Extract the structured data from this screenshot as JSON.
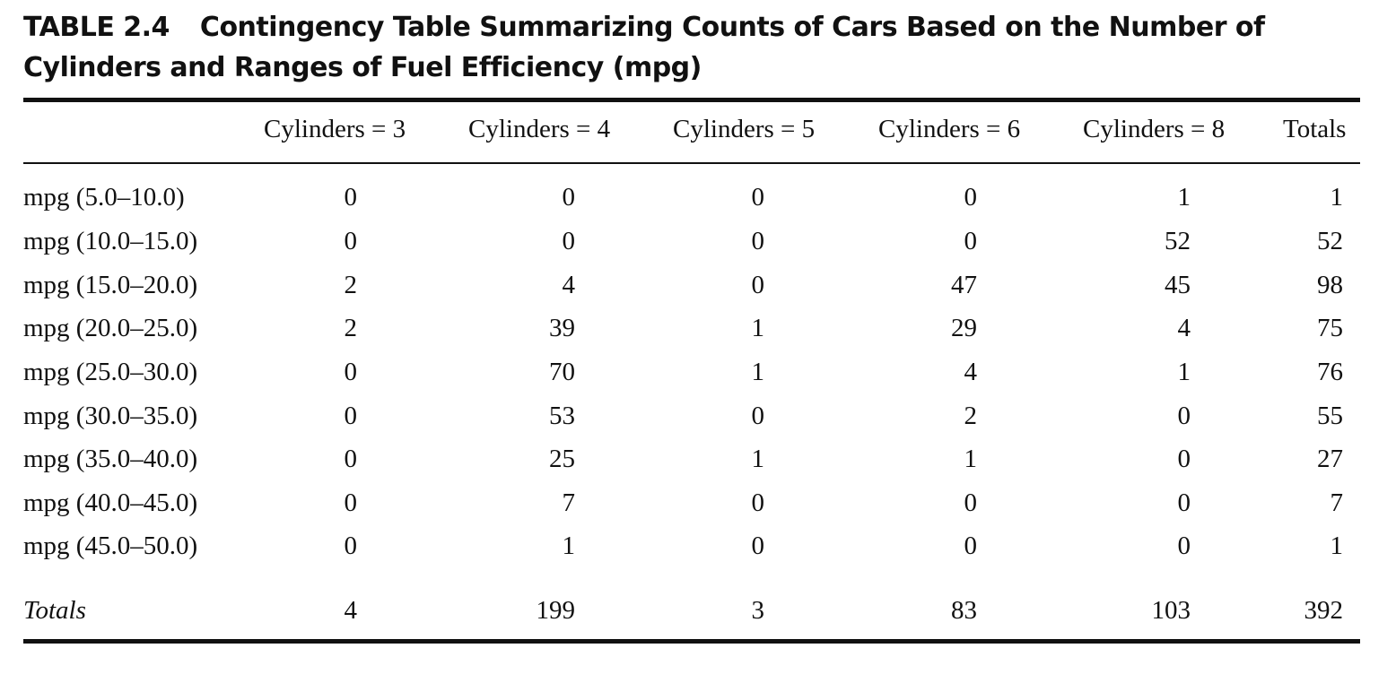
{
  "caption": {
    "label": "TABLE 2.4",
    "line1": "Contingency Table Summarizing Counts of Cars Based on the Number of",
    "line2": "Cylinders and Ranges of Fuel Efficiency (mpg)"
  },
  "headers": [
    "Cylinders = 3",
    "Cylinders = 4",
    "Cylinders = 5",
    "Cylinders = 6",
    "Cylinders = 8",
    "Totals"
  ],
  "rows": [
    {
      "label": "mpg (5.0–10.0)",
      "values": [
        "0",
        "0",
        "0",
        "0",
        "1",
        "1"
      ]
    },
    {
      "label": "mpg (10.0–15.0)",
      "values": [
        "0",
        "0",
        "0",
        "0",
        "52",
        "52"
      ]
    },
    {
      "label": "mpg (15.0–20.0)",
      "values": [
        "2",
        "4",
        "0",
        "47",
        "45",
        "98"
      ]
    },
    {
      "label": "mpg (20.0–25.0)",
      "values": [
        "2",
        "39",
        "1",
        "29",
        "4",
        "75"
      ]
    },
    {
      "label": "mpg (25.0–30.0)",
      "values": [
        "0",
        "70",
        "1",
        "4",
        "1",
        "76"
      ]
    },
    {
      "label": "mpg (30.0–35.0)",
      "values": [
        "0",
        "53",
        "0",
        "2",
        "0",
        "55"
      ]
    },
    {
      "label": "mpg (35.0–40.0)",
      "values": [
        "0",
        "25",
        "1",
        "1",
        "0",
        "27"
      ]
    },
    {
      "label": "mpg (40.0–45.0)",
      "values": [
        "0",
        "7",
        "0",
        "0",
        "0",
        "7"
      ]
    },
    {
      "label": "mpg (45.0–50.0)",
      "values": [
        "0",
        "1",
        "0",
        "0",
        "0",
        "1"
      ]
    }
  ],
  "totals": {
    "label": "Totals",
    "values": [
      "4",
      "199",
      "3",
      "83",
      "103",
      "392"
    ]
  }
}
